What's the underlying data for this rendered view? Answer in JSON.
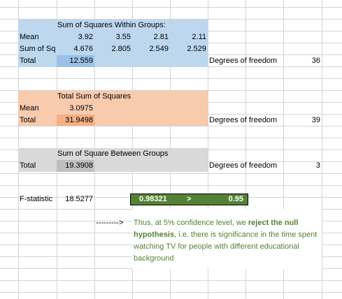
{
  "within": {
    "title": "Sum of Squares Within Groups:",
    "mean_label": "Mean",
    "mean_values": [
      "3.92",
      "3.55",
      "2.81",
      "2.11"
    ],
    "sumsq_label": "Sum of Sq",
    "sumsq_values": [
      "4.676",
      "2.805",
      "2.549",
      "2.529"
    ],
    "total_label": "Total",
    "total_value": "12.559",
    "dof_label": "Degrees of freedom",
    "dof_value": "36"
  },
  "total_ss": {
    "title": "Total Sum of Squares",
    "mean_label": "Mean",
    "mean_value": "3.0975",
    "total_label": "Total",
    "total_value": "31.9498",
    "dof_label": "Degrees of freedom",
    "dof_value": "39"
  },
  "between": {
    "title": "Sum of Square Between Groups",
    "total_label": "Total",
    "total_value": "19.3908",
    "dof_label": "Degrees of freedom",
    "dof_value": "3"
  },
  "fstat": {
    "label": "F-statistic",
    "value": "18.5277",
    "compare_left": "0.98321",
    "compare_op": ">",
    "compare_right": "0.95"
  },
  "conclusion": {
    "arrow": "--------->",
    "text_1": "Thus, at 5% confidence level, we ",
    "text_bold": "reject the null hypothesis",
    "text_2": ", i.e. there is significance in the time spent watching TV for people with different educational background"
  },
  "colors": {
    "blue": "#bdd7ee",
    "blue_dark": "#9bc2e6",
    "orange": "#f8cbad",
    "orange_dark": "#f4b084",
    "gray": "#d9d9d9",
    "gray_dark": "#bfbfbf",
    "green": "#548235"
  }
}
